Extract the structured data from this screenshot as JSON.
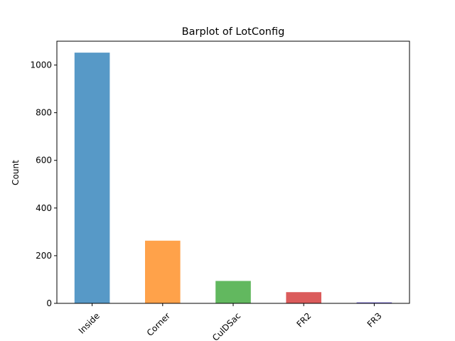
{
  "chart_data": {
    "type": "bar",
    "title": "Barplot of LotConfig",
    "xlabel": "",
    "ylabel": "Count",
    "categories": [
      "Inside",
      "Corner",
      "CulDSac",
      "FR2",
      "FR3"
    ],
    "values": [
      1052,
      263,
      94,
      47,
      4
    ],
    "bar_colors": [
      "#5799c7",
      "#ffa24a",
      "#62b85f",
      "#db5b5b",
      "#6a5fd0"
    ],
    "ylim": [
      0,
      1100
    ],
    "yticks": [
      0,
      200,
      400,
      600,
      800,
      1000
    ],
    "grid": false,
    "legend": "none",
    "x_tick_rotation": "45"
  }
}
